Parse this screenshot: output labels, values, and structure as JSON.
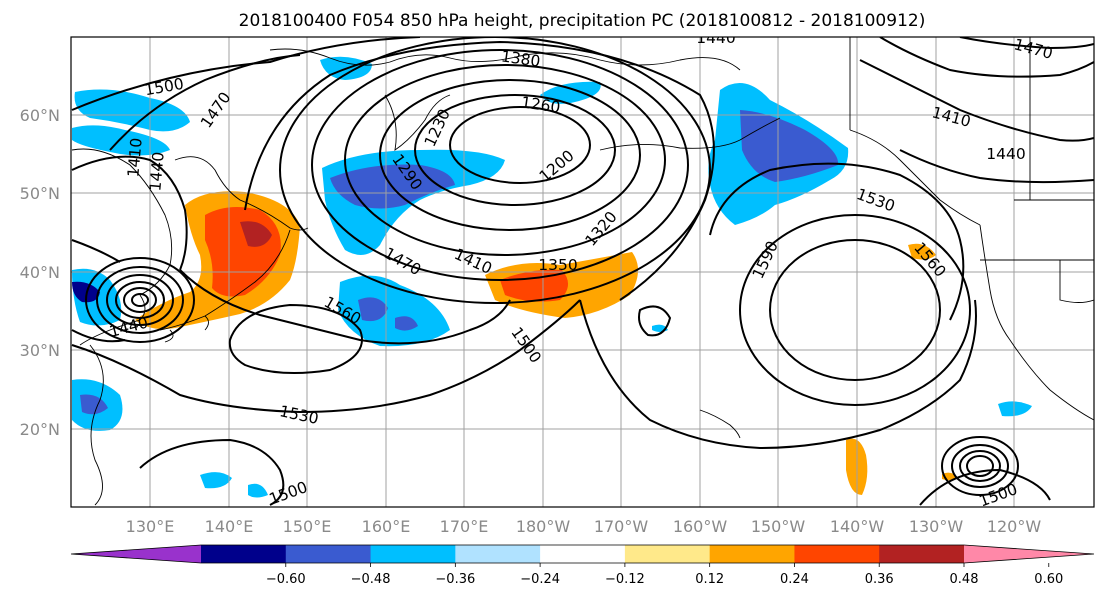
{
  "title": "2018100400 F054 850 hPa height, precipitation PC (2018100812 - 2018100912)",
  "lat_labels": [
    "60°N",
    "50°N",
    "40°N",
    "30°N",
    "20°N"
  ],
  "lon_labels": [
    "130°E",
    "140°E",
    "150°E",
    "160°E",
    "170°E",
    "180°W",
    "170°W",
    "160°W",
    "150°W",
    "140°W",
    "130°W",
    "120°W"
  ],
  "colorbar": {
    "colors": [
      "#9932cc",
      "#00008b",
      "#3a5bd0",
      "#00bfff",
      "#b0e2ff",
      "#ffffff",
      "#ffe98a",
      "#ffa500",
      "#ff4500",
      "#b22222",
      "#ff88a8"
    ],
    "tick_labels": [
      "−0.60",
      "−0.48",
      "−0.36",
      "−0.24",
      "−0.12",
      "0.12",
      "0.24",
      "0.36",
      "0.48",
      "0.60"
    ]
  },
  "contour_labels": [
    "1500",
    "1470",
    "1410",
    "1440",
    "1380",
    "1440",
    "1470",
    "1260",
    "1230",
    "1200",
    "1290",
    "1320",
    "1410",
    "1440",
    "1530",
    "1560",
    "1590",
    "1470",
    "1410",
    "1350",
    "1500",
    "1560",
    "1530",
    "1500",
    "1500",
    "1440"
  ]
}
